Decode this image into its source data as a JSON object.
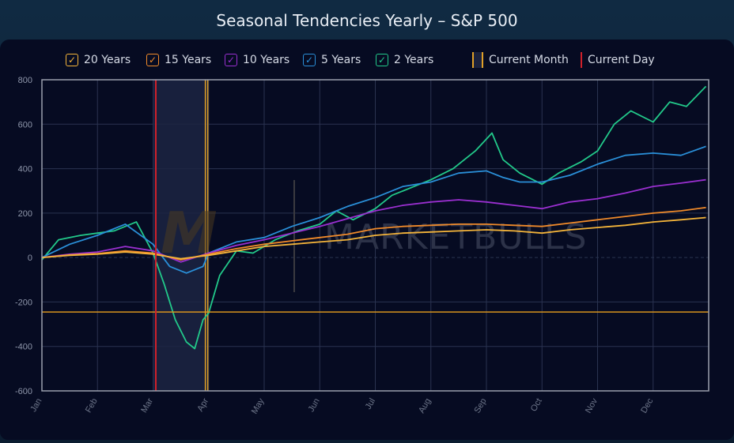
{
  "title": "Seasonal Tendencies Yearly – S&P 500",
  "legend": {
    "s20": "20 Years",
    "s15": "15 Years",
    "s10": "10 Years",
    "s5": "5 Years",
    "s2": "2 Years",
    "current_month": "Current Month",
    "current_day": "Current Day"
  },
  "watermark": "MARKETBULLS",
  "colors": {
    "s20": "#f4b43a",
    "s15": "#f08a2a",
    "s10": "#9a2fd0",
    "s5": "#2a8fd8",
    "s2": "#22c98a",
    "current_day": "#d0202a",
    "current_month": "#e0a028",
    "horizontal_line": "#d8941e"
  },
  "chart_data": {
    "type": "line",
    "xlabel": "",
    "ylabel": "",
    "categories": [
      "Jan",
      "Feb",
      "Mar",
      "Apr",
      "May",
      "Jun",
      "Jul",
      "Aug",
      "Sep",
      "Oct",
      "Nov",
      "Dec"
    ],
    "ylim": [
      -600,
      800
    ],
    "yticks": [
      800,
      600,
      400,
      200,
      0,
      -200,
      -400,
      -600
    ],
    "grid": true,
    "current_month_range": [
      2.0,
      2.97
    ],
    "current_day": 2.05,
    "horizontal_line_value": -245,
    "series": [
      {
        "name": "20 Years",
        "key": "s20",
        "x": [
          0,
          0.5,
          1,
          1.5,
          2,
          2.5,
          3,
          3.5,
          4,
          4.5,
          5,
          5.5,
          6,
          6.5,
          7,
          7.5,
          8,
          8.5,
          9,
          9.5,
          10,
          10.5,
          11,
          11.5,
          11.95
        ],
        "y": [
          0,
          10,
          15,
          25,
          15,
          -5,
          10,
          30,
          50,
          60,
          70,
          80,
          100,
          110,
          115,
          120,
          125,
          120,
          110,
          125,
          135,
          145,
          160,
          170,
          180
        ]
      },
      {
        "name": "15 Years",
        "key": "s15",
        "x": [
          0,
          0.5,
          1,
          1.5,
          2,
          2.5,
          3,
          3.5,
          4,
          4.5,
          5,
          5.5,
          6,
          6.5,
          7,
          7.5,
          8,
          8.5,
          9,
          9.5,
          10,
          10.5,
          11,
          11.5,
          11.95
        ],
        "y": [
          0,
          12,
          18,
          30,
          20,
          -10,
          15,
          40,
          60,
          75,
          90,
          105,
          130,
          140,
          145,
          150,
          150,
          145,
          140,
          155,
          170,
          185,
          200,
          210,
          225
        ]
      },
      {
        "name": "10 Years",
        "key": "s10",
        "x": [
          0,
          0.5,
          1,
          1.5,
          2,
          2.5,
          3,
          3.5,
          4,
          4.5,
          5,
          5.5,
          6,
          6.5,
          7,
          7.5,
          8,
          8.5,
          9,
          9.5,
          10,
          10.5,
          11,
          11.5,
          11.95
        ],
        "y": [
          0,
          15,
          25,
          50,
          30,
          -20,
          20,
          55,
          80,
          110,
          140,
          175,
          210,
          235,
          250,
          260,
          250,
          235,
          220,
          250,
          265,
          290,
          320,
          335,
          350
        ]
      },
      {
        "name": "5 Years",
        "key": "s5",
        "x": [
          0,
          0.5,
          1,
          1.5,
          2,
          2.3,
          2.6,
          2.9,
          3,
          3.5,
          4,
          4.5,
          5,
          5.5,
          6,
          6.5,
          7,
          7.5,
          8,
          8.3,
          8.6,
          9,
          9.5,
          10,
          10.5,
          11,
          11.5,
          11.95
        ],
        "y": [
          0,
          60,
          100,
          150,
          60,
          -40,
          -70,
          -40,
          20,
          70,
          90,
          140,
          180,
          230,
          270,
          320,
          340,
          380,
          390,
          360,
          340,
          340,
          370,
          420,
          460,
          470,
          460,
          500
        ]
      },
      {
        "name": "2 Years",
        "key": "s2",
        "x": [
          0,
          0.3,
          0.7,
          1,
          1.3,
          1.7,
          2,
          2.2,
          2.4,
          2.6,
          2.75,
          2.9,
          3.0,
          3.2,
          3.5,
          3.8,
          4.2,
          4.6,
          5,
          5.3,
          5.6,
          6,
          6.3,
          6.7,
          7,
          7.4,
          7.8,
          8.1,
          8.3,
          8.6,
          9,
          9.3,
          9.7,
          10,
          10.3,
          10.6,
          11,
          11.3,
          11.6,
          11.95
        ],
        "y": [
          -10,
          80,
          100,
          110,
          120,
          160,
          20,
          -120,
          -280,
          -380,
          -410,
          -280,
          -250,
          -80,
          30,
          20,
          80,
          120,
          150,
          210,
          170,
          220,
          280,
          320,
          350,
          400,
          480,
          560,
          440,
          380,
          330,
          380,
          430,
          480,
          600,
          660,
          610,
          700,
          680,
          770
        ]
      }
    ]
  }
}
